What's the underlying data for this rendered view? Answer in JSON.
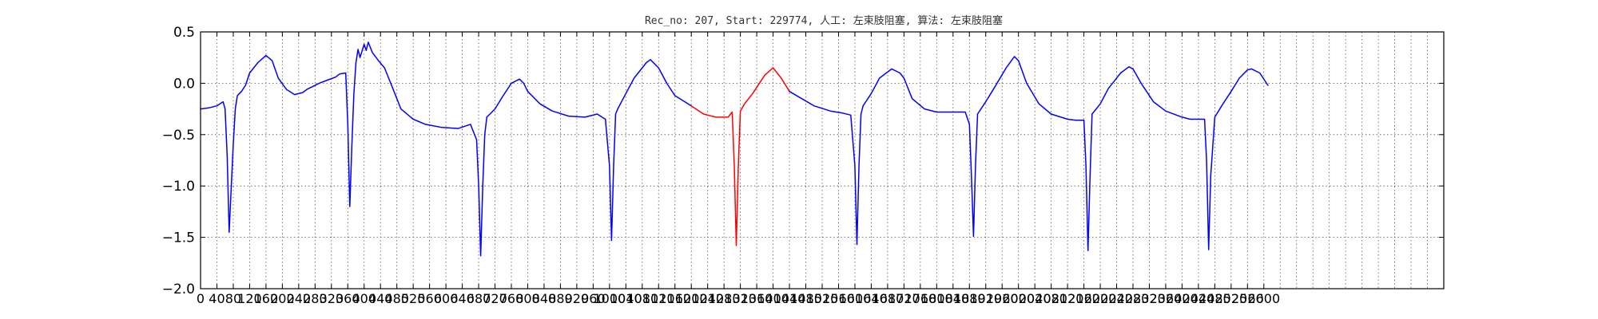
{
  "chart_data": {
    "type": "line",
    "title": "Rec_no: 207, Start: 229774, 人工: 左束肢阻塞, 算法: 左束肢阻塞",
    "xlabel": "",
    "ylabel": "",
    "xlim": [
      0,
      3040
    ],
    "ylim": [
      -2.0,
      0.5
    ],
    "xtick_step": 40,
    "xtick_labels": [
      "0",
      "40",
      "80",
      "120",
      "160",
      "200",
      "240",
      "280",
      "320",
      "360",
      "400",
      "440",
      "480",
      "520",
      "560",
      "600",
      "640",
      "680",
      "720",
      "760",
      "800",
      "840",
      "880",
      "920",
      "960",
      "1000",
      "1040",
      "1080",
      "1120",
      "1160",
      "1200",
      "1240",
      "1280",
      "1320",
      "1360",
      "1400",
      "1440",
      "1480",
      "1520",
      "1560",
      "1600",
      "1640",
      "1680",
      "1720",
      "1760",
      "1800",
      "1840",
      "1880",
      "1920",
      "1960",
      "2000",
      "2040",
      "2080",
      "2120",
      "2160",
      "2200",
      "2240",
      "2280",
      "2320",
      "2360",
      "2400",
      "2440",
      "2480",
      "2520",
      "2560",
      "2600"
    ],
    "yticks": [
      -2.0,
      -1.5,
      -1.0,
      -0.5,
      0.0,
      0.5
    ],
    "ytick_labels": [
      "−2.0",
      "−1.5",
      "−1.0",
      "−0.5",
      "0.0",
      "0.5"
    ],
    "grid": true,
    "colors": {
      "base": "#0000ff",
      "highlight": "#ff0000",
      "grid": "#555555",
      "axis": "#000000"
    },
    "series": [
      {
        "color": "#0000ff",
        "x": [
          0,
          20,
          40,
          55,
          60,
          65,
          70,
          80,
          85,
          90,
          95,
          100,
          110,
          120,
          140,
          160,
          175,
          190,
          210,
          230,
          250,
          260,
          275,
          290,
          310,
          330,
          340,
          355,
          360,
          365,
          370,
          375,
          380,
          385,
          390,
          400,
          405,
          410,
          420,
          435,
          450,
          470,
          490,
          520,
          550,
          590,
          630,
          660,
          675,
          680,
          685,
          690,
          695,
          700,
          720,
          740,
          760,
          780,
          790,
          800,
          830,
          860,
          900,
          940,
          970,
          990,
          1000,
          1005,
          1010,
          1015,
          1020,
          1040,
          1060,
          1090,
          1100,
          1120,
          1140,
          1160,
          1200
        ],
        "y": [
          -0.25,
          -0.24,
          -0.22,
          -0.18,
          -0.25,
          -0.7,
          -1.45,
          -0.6,
          -0.25,
          -0.12,
          -0.1,
          -0.08,
          -0.02,
          0.1,
          0.2,
          0.27,
          0.22,
          0.05,
          -0.06,
          -0.11,
          -0.09,
          -0.06,
          -0.03,
          0.0,
          0.03,
          0.06,
          0.09,
          0.1,
          -0.4,
          -1.2,
          -0.6,
          -0.1,
          0.2,
          0.33,
          0.25,
          0.38,
          0.32,
          0.4,
          0.3,
          0.22,
          0.15,
          -0.05,
          -0.25,
          -0.35,
          -0.4,
          -0.43,
          -0.44,
          -0.4,
          -0.55,
          -1.0,
          -1.68,
          -1.0,
          -0.5,
          -0.33,
          -0.25,
          -0.12,
          0.0,
          0.04,
          0.0,
          -0.08,
          -0.2,
          -0.27,
          -0.32,
          -0.33,
          -0.3,
          -0.35,
          -0.8,
          -1.53,
          -0.8,
          -0.3,
          -0.25,
          -0.1,
          0.05,
          0.2,
          0.23,
          0.15,
          0.0,
          -0.12,
          -0.22
        ]
      },
      {
        "color": "#ff0000",
        "x": [
          1200,
          1230,
          1260,
          1290,
          1300,
          1305,
          1310,
          1315,
          1320,
          1330,
          1350,
          1380,
          1400,
          1420,
          1440
        ],
        "y": [
          -0.22,
          -0.3,
          -0.33,
          -0.33,
          -0.28,
          -0.8,
          -1.58,
          -0.8,
          -0.27,
          -0.2,
          -0.1,
          0.08,
          0.15,
          0.05,
          -0.08
        ]
      },
      {
        "color": "#0000ff",
        "x": [
          1440,
          1470,
          1500,
          1540,
          1570,
          1590,
          1600,
          1605,
          1610,
          1615,
          1620,
          1640,
          1660,
          1690,
          1710,
          1720,
          1740,
          1770,
          1800,
          1840,
          1870,
          1880,
          1885,
          1890,
          1895,
          1900,
          1920,
          1940,
          1970,
          1990,
          2000,
          2020,
          2050,
          2080,
          2120,
          2140,
          2160,
          2165,
          2170,
          2175,
          2180,
          2200,
          2220,
          2250,
          2270,
          2280,
          2300,
          2330,
          2360,
          2400,
          2420,
          2440,
          2455,
          2460,
          2465,
          2470,
          2480,
          2500,
          2520,
          2540,
          2560,
          2570,
          2590,
          2610
        ],
        "y": [
          -0.08,
          -0.15,
          -0.22,
          -0.27,
          -0.29,
          -0.31,
          -0.8,
          -1.57,
          -0.8,
          -0.3,
          -0.22,
          -0.1,
          0.05,
          0.14,
          0.1,
          0.05,
          -0.15,
          -0.25,
          -0.28,
          -0.28,
          -0.28,
          -0.4,
          -0.9,
          -1.49,
          -0.8,
          -0.3,
          -0.18,
          -0.05,
          0.15,
          0.26,
          0.22,
          0.0,
          -0.2,
          -0.3,
          -0.35,
          -0.36,
          -0.36,
          -0.8,
          -1.63,
          -0.9,
          -0.3,
          -0.2,
          -0.05,
          0.1,
          0.16,
          0.14,
          0.0,
          -0.18,
          -0.27,
          -0.33,
          -0.35,
          -0.35,
          -0.35,
          -0.75,
          -1.62,
          -0.9,
          -0.33,
          -0.2,
          -0.08,
          0.05,
          0.13,
          0.14,
          0.1,
          -0.02
        ]
      }
    ]
  }
}
